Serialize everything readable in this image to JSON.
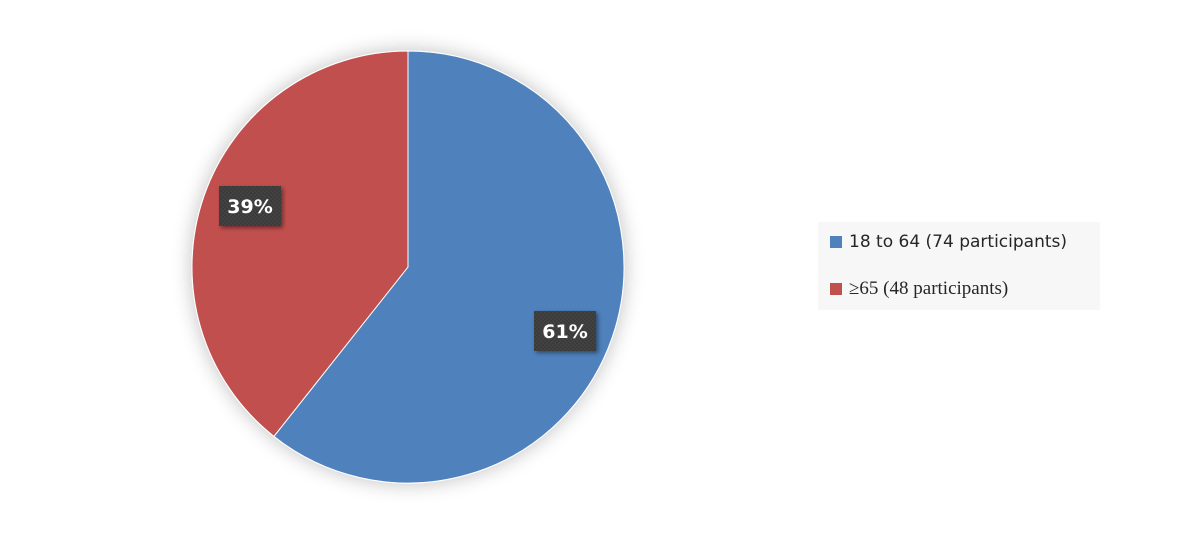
{
  "chart_data": {
    "type": "pie",
    "start_angle_deg": 0,
    "direction": "clockwise",
    "slices": [
      {
        "label": "18 to 64 (74 participants)",
        "value": 74,
        "percent_label": "61%",
        "color": "#4f81bd"
      },
      {
        "label": "≥65 (48 participants)",
        "value": 48,
        "percent_label": "39%",
        "color": "#c0504d"
      }
    ],
    "legend_position": "right"
  }
}
